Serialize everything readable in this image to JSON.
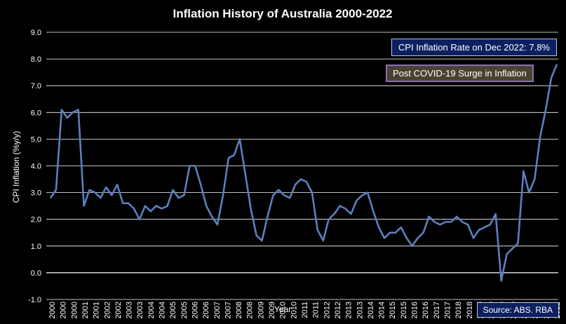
{
  "chart_data": {
    "type": "line",
    "title": "Inflation History of Australia 2000-2022",
    "xlabel": "Year",
    "ylabel": "CPI Inflation (%y/y)",
    "ylim": [
      -1.0,
      9.0
    ],
    "yticks": [
      "9.0",
      "8.0",
      "7.0",
      "6.0",
      "5.0",
      "4.0",
      "3.0",
      "2.0",
      "1.0",
      "0.0",
      "-1.0"
    ],
    "xtick_labels": [
      "2000",
      "2000",
      "2000",
      "2001",
      "2001",
      "2002",
      "2002",
      "2003",
      "2003",
      "2004",
      "2004",
      "2005",
      "2005",
      "2006",
      "2006",
      "2007",
      "2007",
      "2008",
      "2008",
      "2009",
      "2009",
      "2010",
      "2010",
      "2011",
      "2011",
      "2012",
      "2012",
      "2013",
      "2013",
      "2014",
      "2014",
      "2015",
      "2015",
      "2016",
      "2016",
      "2017",
      "2017",
      "2018",
      "2018",
      "2019",
      "2019",
      "2020",
      "2020",
      "2021",
      "2021",
      "2022",
      "2022"
    ],
    "grid": true,
    "series": [
      {
        "color": "#5b80bf",
        "values": [
          2.8,
          3.1,
          6.1,
          5.8,
          6.0,
          6.1,
          2.5,
          3.1,
          3.0,
          2.8,
          3.2,
          2.9,
          3.3,
          2.6,
          2.6,
          2.4,
          2.0,
          2.5,
          2.3,
          2.5,
          2.4,
          2.5,
          3.1,
          2.8,
          2.9,
          4.0,
          4.0,
          3.3,
          2.5,
          2.1,
          1.8,
          2.9,
          4.3,
          4.4,
          5.0,
          3.7,
          2.4,
          1.4,
          1.2,
          2.1,
          2.9,
          3.1,
          2.9,
          2.8,
          3.3,
          3.5,
          3.4,
          3.0,
          1.6,
          1.2,
          2.0,
          2.2,
          2.5,
          2.4,
          2.2,
          2.7,
          2.9,
          3.0,
          2.3,
          1.7,
          1.3,
          1.5,
          1.5,
          1.7,
          1.3,
          1.0,
          1.3,
          1.5,
          2.1,
          1.9,
          1.8,
          1.9,
          1.9,
          2.1,
          1.9,
          1.8,
          1.3,
          1.6,
          1.7,
          1.8,
          2.2,
          -0.3,
          0.7,
          0.9,
          1.1,
          3.8,
          3.0,
          3.5,
          5.1,
          6.1,
          7.3,
          7.8
        ]
      }
    ]
  },
  "annotations": {
    "rate_box": "CPI Inflation Rate on Dec 2022: 7.8%",
    "covid_box": "Post COVID-19 Surge in Inflation",
    "source_box": "Source: ABS. RBA"
  },
  "colors": {
    "background": "#000000",
    "line": "#5b80bf",
    "grid": "#ffffff",
    "rate_box_bg": "#0c2060",
    "covid_box_bg": "#4a4231",
    "covid_box_border": "#8a6fb8"
  }
}
